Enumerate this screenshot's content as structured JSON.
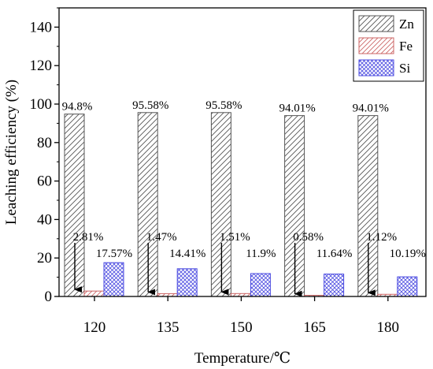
{
  "chart_data": {
    "type": "bar",
    "title": "",
    "xlabel": "Temperature/℃",
    "ylabel": "Leaching efficiency (%)",
    "ylim": [
      0,
      150
    ],
    "yticks": [
      0,
      20,
      40,
      60,
      80,
      100,
      120,
      140
    ],
    "grid": false,
    "legend_position": "top-right",
    "categories": [
      "120",
      "135",
      "150",
      "165",
      "180"
    ],
    "series": [
      {
        "name": "Zn",
        "values": [
          94.8,
          95.58,
          95.58,
          94.01,
          94.01
        ],
        "labels": [
          "94.8%",
          "95.58%",
          "95.58%",
          "94.01%",
          "94.01%"
        ],
        "fill": "hatch-diagonal",
        "color": "#555555"
      },
      {
        "name": "Fe",
        "values": [
          2.81,
          1.47,
          1.51,
          0.58,
          1.12
        ],
        "labels": [
          "2.81%",
          "1.47%",
          "1.51%",
          "0.58%",
          "1.12%"
        ],
        "fill": "hatch-diagonal",
        "color": "#cc6666"
      },
      {
        "name": "Si",
        "values": [
          17.57,
          14.41,
          11.9,
          11.64,
          10.19
        ],
        "labels": [
          "17.57%",
          "14.41%",
          "11.9%",
          "11.64%",
          "10.19%"
        ],
        "fill": "crosshatch",
        "color": "#4a4ae0"
      }
    ],
    "annotations": "downward arrows point to the Fe bars"
  }
}
